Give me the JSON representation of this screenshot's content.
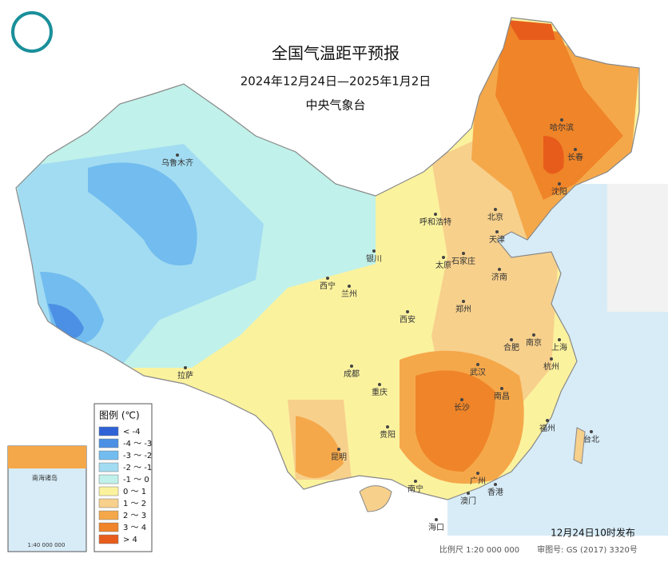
{
  "header": {
    "title": "全国气温距平预报",
    "subtitle": "2024年12月24日—2025年1月2日",
    "issuer": "中央气象台"
  },
  "legend": {
    "title": "图例 (℃)",
    "items": [
      {
        "label": "< -4",
        "color": "#2f62d6"
      },
      {
        "label": "-4 ～ -3",
        "color": "#4b90e4"
      },
      {
        "label": "-3 ～ -2",
        "color": "#72bcef"
      },
      {
        "label": "-2 ～ -1",
        "color": "#a2dcf2"
      },
      {
        "label": "-1 ～ 0",
        "color": "#c0f1ea"
      },
      {
        "label": "0 ～ 1",
        "color": "#fbf29e"
      },
      {
        "label": "1 ～ 2",
        "color": "#f7d08c"
      },
      {
        "label": "2 ～ 3",
        "color": "#f5a84a"
      },
      {
        "label": "3 ～ 4",
        "color": "#ef8428"
      },
      {
        "label": "> 4",
        "color": "#e85c1b"
      }
    ]
  },
  "cities": [
    "乌鲁木齐",
    "呼和浩特",
    "北京",
    "天津",
    "银川",
    "太原",
    "石家庄",
    "西宁",
    "兰州",
    "济南",
    "郑州",
    "西安",
    "合肥",
    "南京",
    "上海",
    "武汉",
    "杭州",
    "成都",
    "重庆",
    "拉萨",
    "长沙",
    "南昌",
    "贵阳",
    "昆明",
    "福州",
    "台北",
    "南宁",
    "广州",
    "澳门",
    "香港",
    "海口",
    "哈尔滨",
    "长春",
    "沈阳"
  ],
  "inset": {
    "title": "南海诸岛",
    "scale": "1:40 000 000"
  },
  "footer": {
    "scale": "比例尺 1:20 000 000",
    "approval": "审图号: GS (2017) 3320号",
    "issued": "12月24日10时发布"
  }
}
